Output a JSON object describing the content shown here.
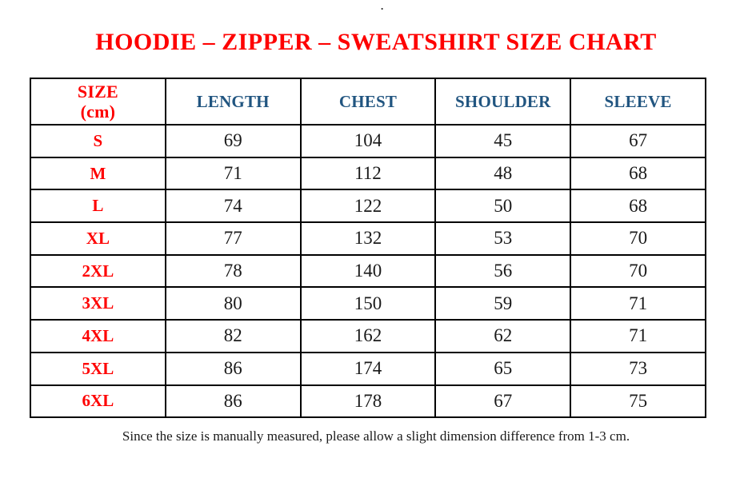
{
  "page": {
    "top_dot": ".",
    "title": "HOODIE – ZIPPER – SWEATSHIRT SIZE CHART",
    "footer_note": "Since the size is manually measured, please allow a slight dimension difference from 1-3 cm."
  },
  "chart_data": {
    "type": "table",
    "title": "HOODIE – ZIPPER – SWEATSHIRT SIZE CHART",
    "unit": "cm",
    "size_header": {
      "line1": "SIZE",
      "line2": "(cm)"
    },
    "columns": [
      "LENGTH",
      "CHEST",
      "SHOULDER",
      "SLEEVE"
    ],
    "rows": [
      {
        "size": "S",
        "length": "69",
        "chest": "104",
        "shoulder": "45",
        "sleeve": "67"
      },
      {
        "size": "M",
        "length": "71",
        "chest": "112",
        "shoulder": "48",
        "sleeve": "68"
      },
      {
        "size": "L",
        "length": "74",
        "chest": "122",
        "shoulder": "50",
        "sleeve": "68"
      },
      {
        "size": "XL",
        "length": "77",
        "chest": "132",
        "shoulder": "53",
        "sleeve": "70"
      },
      {
        "size": "2XL",
        "length": "78",
        "chest": "140",
        "shoulder": "56",
        "sleeve": "70"
      },
      {
        "size": "3XL",
        "length": "80",
        "chest": "150",
        "shoulder": "59",
        "sleeve": "71"
      },
      {
        "size": "4XL",
        "length": "82",
        "chest": "162",
        "shoulder": "62",
        "sleeve": "71"
      },
      {
        "size": "5XL",
        "length": "86",
        "chest": "174",
        "shoulder": "65",
        "sleeve": "73"
      },
      {
        "size": "6XL",
        "length": "86",
        "chest": "178",
        "shoulder": "67",
        "sleeve": "75"
      }
    ]
  },
  "colors": {
    "accent_red": "#FE0000",
    "header_blue": "#215580",
    "text_black": "#1A1A1A",
    "border_black": "#000000",
    "background": "#FFFFFF"
  }
}
